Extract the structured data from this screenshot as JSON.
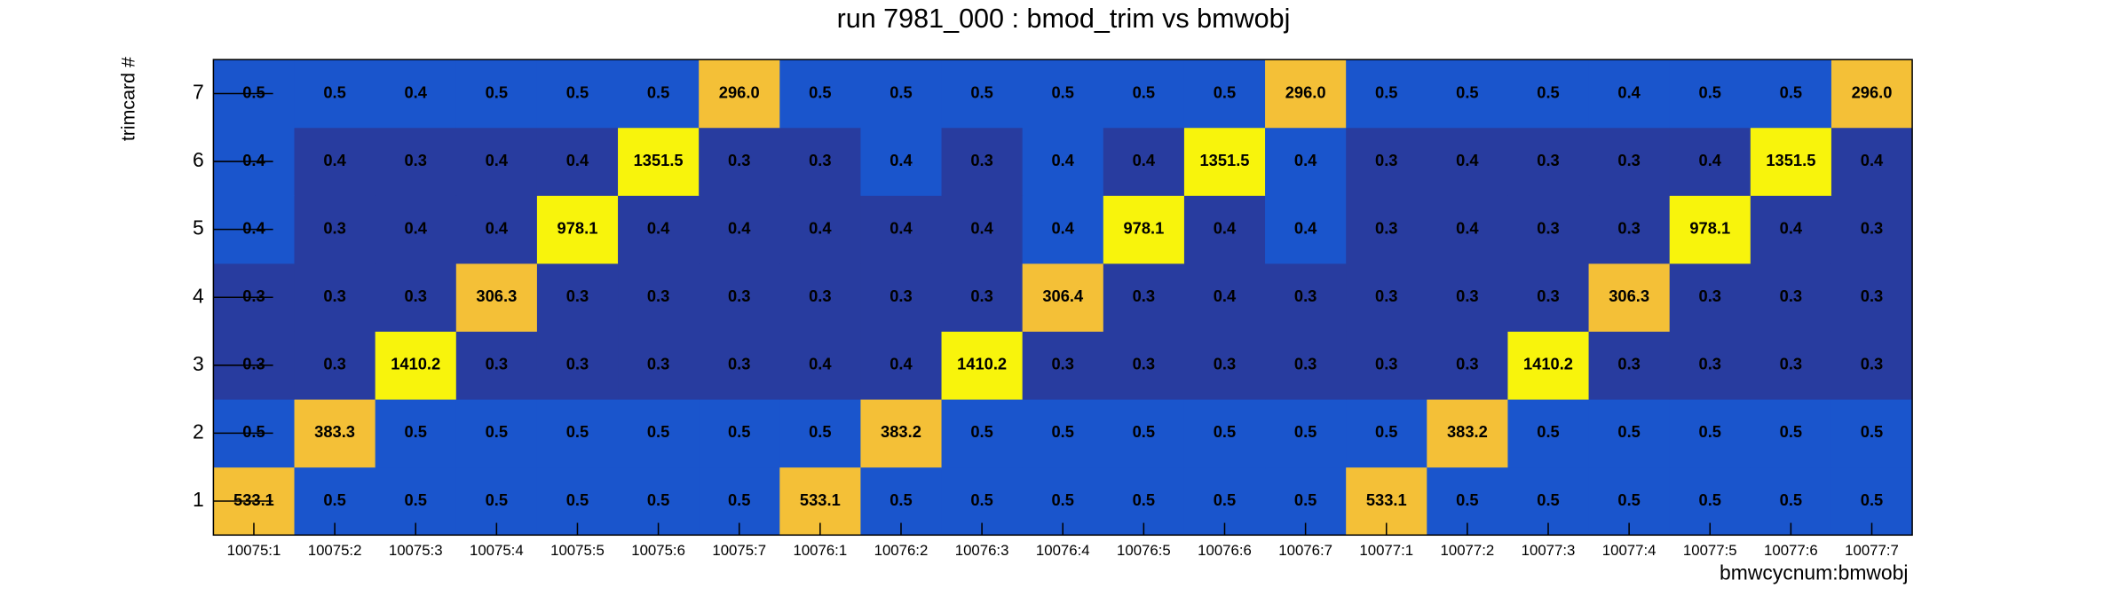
{
  "chart_data": {
    "type": "heatmap",
    "title": "run 7981_000 : bmod_trim vs bmwobj",
    "x_label": "bmwcycnum:bmwobj",
    "y_label": "trimcard #",
    "x_categories": [
      "10075:1",
      "10075:2",
      "10075:3",
      "10075:4",
      "10075:5",
      "10075:6",
      "10075:7",
      "10076:1",
      "10076:2",
      "10076:3",
      "10076:4",
      "10076:5",
      "10076:6",
      "10076:7",
      "10077:1",
      "10077:2",
      "10077:3",
      "10077:4",
      "10077:5",
      "10077:6",
      "10077:7"
    ],
    "y_categories": [
      "1",
      "2",
      "3",
      "4",
      "5",
      "6",
      "7"
    ],
    "values": [
      [
        533.1,
        0.5,
        0.5,
        0.5,
        0.5,
        0.5,
        0.5,
        533.1,
        0.5,
        0.5,
        0.5,
        0.5,
        0.5,
        0.5,
        533.1,
        0.5,
        0.5,
        0.5,
        0.5,
        0.5,
        0.5
      ],
      [
        0.5,
        383.3,
        0.5,
        0.5,
        0.5,
        0.5,
        0.5,
        0.5,
        383.2,
        0.5,
        0.5,
        0.5,
        0.5,
        0.5,
        0.5,
        383.2,
        0.5,
        0.5,
        0.5,
        0.5,
        0.5
      ],
      [
        0.3,
        0.3,
        1410.2,
        0.3,
        0.3,
        0.3,
        0.3,
        0.4,
        0.4,
        1410.2,
        0.3,
        0.3,
        0.3,
        0.3,
        0.3,
        0.3,
        1410.2,
        0.3,
        0.3,
        0.3,
        0.3
      ],
      [
        0.3,
        0.3,
        0.3,
        306.3,
        0.3,
        0.3,
        0.3,
        0.3,
        0.3,
        0.3,
        306.4,
        0.3,
        0.4,
        0.3,
        0.3,
        0.3,
        0.3,
        306.3,
        0.3,
        0.3,
        0.3
      ],
      [
        0.4,
        0.3,
        0.4,
        0.4,
        978.1,
        0.4,
        0.4,
        0.4,
        0.4,
        0.4,
        0.4,
        978.1,
        0.4,
        0.4,
        0.3,
        0.4,
        0.3,
        0.3,
        978.1,
        0.4,
        0.3
      ],
      [
        0.4,
        0.4,
        0.3,
        0.4,
        0.4,
        1351.5,
        0.3,
        0.3,
        0.4,
        0.3,
        0.4,
        0.4,
        1351.5,
        0.4,
        0.3,
        0.4,
        0.3,
        0.3,
        0.4,
        1351.5,
        0.4
      ],
      [
        0.5,
        0.5,
        0.4,
        0.5,
        0.5,
        0.5,
        296,
        0.5,
        0.5,
        0.5,
        0.5,
        0.5,
        0.5,
        296,
        0.5,
        0.5,
        0.5,
        0.4,
        0.5,
        0.5,
        296
      ]
    ],
    "value_labels": [
      [
        "533.1",
        "0.5",
        "0.5",
        "0.5",
        "0.5",
        "0.5",
        "0.5",
        "533.1",
        "0.5",
        "0.5",
        "0.5",
        "0.5",
        "0.5",
        "0.5",
        "533.1",
        "0.5",
        "0.5",
        "0.5",
        "0.5",
        "0.5",
        "0.5"
      ],
      [
        "0.5",
        "383.3",
        "0.5",
        "0.5",
        "0.5",
        "0.5",
        "0.5",
        "0.5",
        "383.2",
        "0.5",
        "0.5",
        "0.5",
        "0.5",
        "0.5",
        "0.5",
        "383.2",
        "0.5",
        "0.5",
        "0.5",
        "0.5",
        "0.5"
      ],
      [
        "0.3",
        "0.3",
        "1410.2",
        "0.3",
        "0.3",
        "0.3",
        "0.3",
        "0.4",
        "0.4",
        "1410.2",
        "0.3",
        "0.3",
        "0.3",
        "0.3",
        "0.3",
        "0.3",
        "1410.2",
        "0.3",
        "0.3",
        "0.3",
        "0.3"
      ],
      [
        "0.3",
        "0.3",
        "0.3",
        "306.3",
        "0.3",
        "0.3",
        "0.3",
        "0.3",
        "0.3",
        "0.3",
        "306.4",
        "0.3",
        "0.4",
        "0.3",
        "0.3",
        "0.3",
        "0.3",
        "306.3",
        "0.3",
        "0.3",
        "0.3"
      ],
      [
        "0.4",
        "0.3",
        "0.4",
        "0.4",
        "978.1",
        "0.4",
        "0.4",
        "0.4",
        "0.4",
        "0.4",
        "0.4",
        "978.1",
        "0.4",
        "0.4",
        "0.3",
        "0.4",
        "0.3",
        "0.3",
        "978.1",
        "0.4",
        "0.3"
      ],
      [
        "0.4",
        "0.4",
        "0.3",
        "0.4",
        "0.4",
        "1351.5",
        "0.3",
        "0.3",
        "0.4",
        "0.3",
        "0.4",
        "0.4",
        "1351.5",
        "0.4",
        "0.3",
        "0.4",
        "0.3",
        "0.3",
        "0.4",
        "1351.5",
        "0.4"
      ],
      [
        "0.5",
        "0.5",
        "0.4",
        "0.5",
        "0.5",
        "0.5",
        "296.0",
        "0.5",
        "0.5",
        "0.5",
        "0.5",
        "0.5",
        "0.5",
        "296.0",
        "0.5",
        "0.5",
        "0.5",
        "0.4",
        "0.5",
        "0.5",
        "296.0"
      ]
    ],
    "colors": [
      [
        "#f4c037",
        "#1a55cc",
        "#1a55cc",
        "#1a55cc",
        "#1a55cc",
        "#1a55cc",
        "#1a55cc",
        "#f4c037",
        "#1a55cc",
        "#1a55cc",
        "#1a55cc",
        "#1a55cc",
        "#1a55cc",
        "#1a55cc",
        "#f4c037",
        "#1a55cc",
        "#1a55cc",
        "#1a55cc",
        "#1a55cc",
        "#1a55cc",
        "#1a55cc"
      ],
      [
        "#1a55cc",
        "#f4c037",
        "#1a55cc",
        "#1a55cc",
        "#1a55cc",
        "#1a55cc",
        "#1a55cc",
        "#1a55cc",
        "#f4c037",
        "#1a55cc",
        "#1a55cc",
        "#1a55cc",
        "#1a55cc",
        "#1a55cc",
        "#1a55cc",
        "#f4c037",
        "#1a55cc",
        "#1a55cc",
        "#1a55cc",
        "#1a55cc",
        "#1a55cc"
      ],
      [
        "#283c9f",
        "#283c9f",
        "#f8f40c",
        "#283c9f",
        "#283c9f",
        "#283c9f",
        "#283c9f",
        "#283c9f",
        "#283c9f",
        "#f8f40c",
        "#283c9f",
        "#283c9f",
        "#283c9f",
        "#283c9f",
        "#283c9f",
        "#283c9f",
        "#f8f40c",
        "#283c9f",
        "#283c9f",
        "#283c9f",
        "#283c9f"
      ],
      [
        "#283c9f",
        "#283c9f",
        "#283c9f",
        "#f4c037",
        "#283c9f",
        "#283c9f",
        "#283c9f",
        "#283c9f",
        "#283c9f",
        "#283c9f",
        "#f4c037",
        "#283c9f",
        "#283c9f",
        "#283c9f",
        "#283c9f",
        "#283c9f",
        "#283c9f",
        "#f4c037",
        "#283c9f",
        "#283c9f",
        "#283c9f"
      ],
      [
        "#1a55cc",
        "#283c9f",
        "#283c9f",
        "#283c9f",
        "#f8f40c",
        "#283c9f",
        "#283c9f",
        "#283c9f",
        "#283c9f",
        "#283c9f",
        "#1a55cc",
        "#f8f40c",
        "#283c9f",
        "#1a55cc",
        "#283c9f",
        "#283c9f",
        "#283c9f",
        "#283c9f",
        "#f8f40c",
        "#283c9f",
        "#283c9f"
      ],
      [
        "#1a55cc",
        "#283c9f",
        "#283c9f",
        "#283c9f",
        "#283c9f",
        "#f8f40c",
        "#283c9f",
        "#283c9f",
        "#1a55cc",
        "#283c9f",
        "#1a55cc",
        "#283c9f",
        "#f8f40c",
        "#1a55cc",
        "#283c9f",
        "#283c9f",
        "#283c9f",
        "#283c9f",
        "#283c9f",
        "#f8f40c",
        "#283c9f"
      ],
      [
        "#1a55cc",
        "#1a55cc",
        "#1a55cc",
        "#1a55cc",
        "#1a55cc",
        "#1a55cc",
        "#f4c037",
        "#1a55cc",
        "#1a55cc",
        "#1a55cc",
        "#1a55cc",
        "#1a55cc",
        "#1a55cc",
        "#f4c037",
        "#1a55cc",
        "#1a55cc",
        "#1a55cc",
        "#1a55cc",
        "#1a55cc",
        "#1a55cc",
        "#f4c037"
      ]
    ]
  }
}
